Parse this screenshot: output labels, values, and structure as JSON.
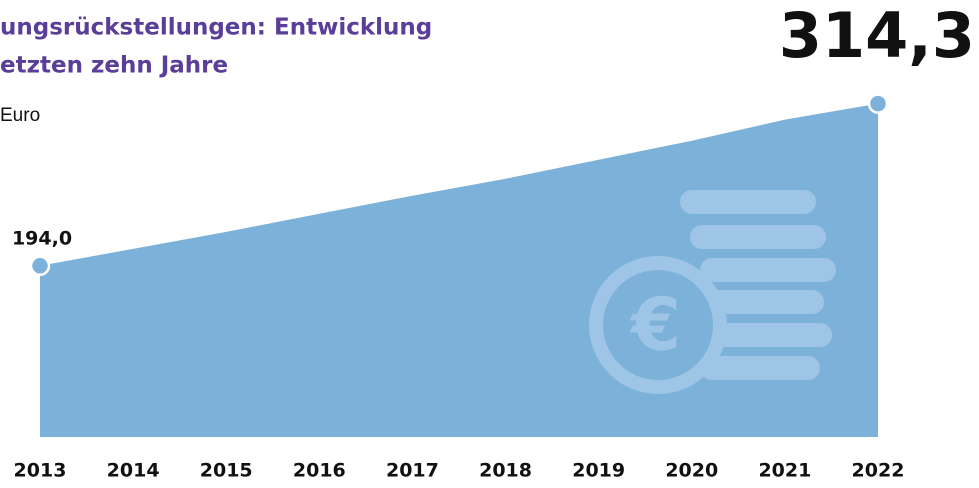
{
  "chart_data": {
    "type": "area",
    "title": [
      "ungsrückstellungen: Entwicklung",
      "etzten zehn Jahre"
    ],
    "subtitle": "Euro",
    "categories": [
      "2013",
      "2014",
      "2015",
      "2016",
      "2017",
      "2018",
      "2019",
      "2020",
      "2021",
      "2022"
    ],
    "values": [
      194.0,
      206.6,
      219.2,
      232.6,
      246.0,
      258.6,
      272.7,
      286.8,
      302.4,
      314.3
    ],
    "value_labels": [
      "194,0",
      null,
      null,
      null,
      null,
      null,
      null,
      null,
      null,
      "314,3"
    ],
    "color": "#7cb2da",
    "ylim": [
      67,
      317
    ]
  }
}
